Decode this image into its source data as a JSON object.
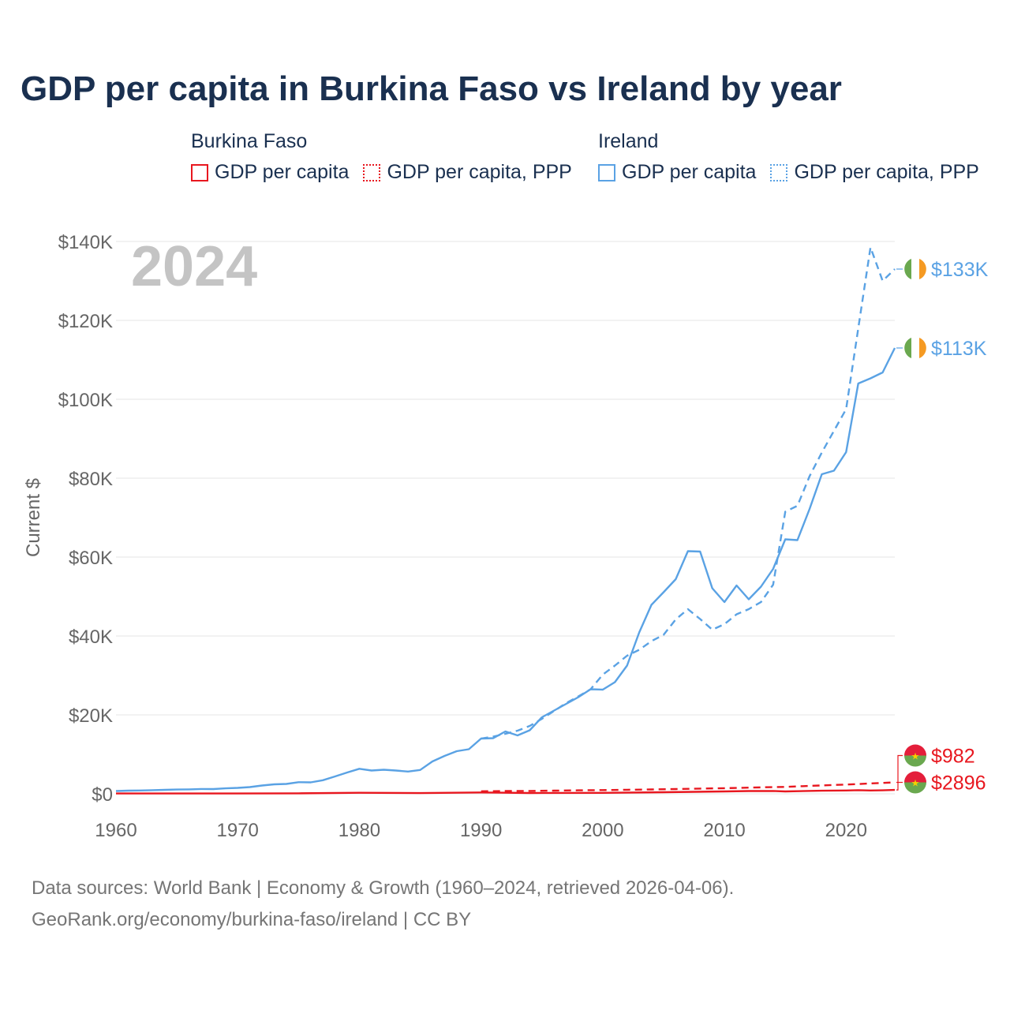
{
  "title": "GDP per capita in Burkina Faso vs Ireland by year",
  "legend": {
    "groups": [
      {
        "country": "Burkina Faso",
        "color": "#e8171f",
        "items": [
          {
            "label": "GDP per capita",
            "style": "solid"
          },
          {
            "label": "GDP per capita, PPP",
            "style": "dotted"
          }
        ]
      },
      {
        "country": "Ireland",
        "color": "#5aa2e4",
        "items": [
          {
            "label": "GDP per capita",
            "style": "solid"
          },
          {
            "label": "GDP per capita, PPP",
            "style": "dotted"
          }
        ]
      }
    ]
  },
  "year_watermark": "2024",
  "footer": {
    "line1": "Data sources: World Bank | Economy & Growth (1960–2024, retrieved 2026-04-06).",
    "line2": "GeoRank.org/economy/burkina-faso/ireland | CC BY"
  },
  "chart_data": {
    "type": "line",
    "ylabel": "Current $",
    "xlabel": "",
    "xlim": [
      1960,
      2024
    ],
    "ylim": [
      0,
      140000
    ],
    "x_ticks": [
      1960,
      1970,
      1980,
      1990,
      2000,
      2010,
      2020
    ],
    "y_ticks": [
      {
        "value": 0,
        "label": "$0"
      },
      {
        "value": 20000,
        "label": "$20K"
      },
      {
        "value": 40000,
        "label": "$40K"
      },
      {
        "value": 60000,
        "label": "$60K"
      },
      {
        "value": 80000,
        "label": "$80K"
      },
      {
        "value": 100000,
        "label": "$100K"
      },
      {
        "value": 120000,
        "label": "$120K"
      },
      {
        "value": 140000,
        "label": "$140K"
      }
    ],
    "series": [
      {
        "name": "Ireland GDP per capita, PPP",
        "country": "Ireland",
        "color": "#5aa2e4",
        "dash": "dashed",
        "end_label": "$133K",
        "points": [
          [
            1990,
            14000
          ],
          [
            1991,
            14500
          ],
          [
            1992,
            15200
          ],
          [
            1993,
            16000
          ],
          [
            1994,
            17200
          ],
          [
            1995,
            19000
          ],
          [
            1996,
            21000
          ],
          [
            1997,
            23000
          ],
          [
            1998,
            24700
          ],
          [
            1999,
            26500
          ],
          [
            2000,
            30200
          ],
          [
            2001,
            32500
          ],
          [
            2002,
            35000
          ],
          [
            2003,
            36500
          ],
          [
            2004,
            38700
          ],
          [
            2005,
            40300
          ],
          [
            2006,
            44200
          ],
          [
            2007,
            46800
          ],
          [
            2008,
            44300
          ],
          [
            2009,
            41600
          ],
          [
            2010,
            43000
          ],
          [
            2011,
            45500
          ],
          [
            2012,
            46800
          ],
          [
            2013,
            48600
          ],
          [
            2014,
            53000
          ],
          [
            2015,
            71500
          ],
          [
            2016,
            73000
          ],
          [
            2017,
            80500
          ],
          [
            2018,
            86500
          ],
          [
            2019,
            92000
          ],
          [
            2020,
            97500
          ],
          [
            2021,
            118000
          ],
          [
            2022,
            138500
          ],
          [
            2023,
            130000
          ],
          [
            2024,
            133000
          ]
        ]
      },
      {
        "name": "Ireland GDP per capita",
        "country": "Ireland",
        "color": "#5aa2e4",
        "dash": "solid",
        "end_label": "$113K",
        "points": [
          [
            1960,
            700
          ],
          [
            1961,
            790
          ],
          [
            1962,
            850
          ],
          [
            1963,
            920
          ],
          [
            1964,
            1010
          ],
          [
            1965,
            1080
          ],
          [
            1966,
            1130
          ],
          [
            1967,
            1220
          ],
          [
            1968,
            1190
          ],
          [
            1969,
            1380
          ],
          [
            1970,
            1500
          ],
          [
            1971,
            1700
          ],
          [
            1972,
            2100
          ],
          [
            1973,
            2400
          ],
          [
            1974,
            2500
          ],
          [
            1975,
            2950
          ],
          [
            1976,
            2900
          ],
          [
            1977,
            3450
          ],
          [
            1978,
            4400
          ],
          [
            1979,
            5400
          ],
          [
            1980,
            6350
          ],
          [
            1981,
            5900
          ],
          [
            1982,
            6100
          ],
          [
            1983,
            5900
          ],
          [
            1984,
            5650
          ],
          [
            1985,
            6050
          ],
          [
            1986,
            8200
          ],
          [
            1987,
            9600
          ],
          [
            1988,
            10800
          ],
          [
            1989,
            11300
          ],
          [
            1990,
            14000
          ],
          [
            1991,
            14100
          ],
          [
            1992,
            15800
          ],
          [
            1993,
            14800
          ],
          [
            1994,
            16100
          ],
          [
            1995,
            19400
          ],
          [
            1996,
            21100
          ],
          [
            1997,
            22800
          ],
          [
            1998,
            24500
          ],
          [
            1999,
            26500
          ],
          [
            2000,
            26400
          ],
          [
            2001,
            28300
          ],
          [
            2002,
            32500
          ],
          [
            2003,
            40900
          ],
          [
            2004,
            47900
          ],
          [
            2005,
            51100
          ],
          [
            2006,
            54400
          ],
          [
            2007,
            61500
          ],
          [
            2008,
            61400
          ],
          [
            2009,
            52100
          ],
          [
            2010,
            48600
          ],
          [
            2011,
            52800
          ],
          [
            2012,
            49300
          ],
          [
            2013,
            52500
          ],
          [
            2014,
            57000
          ],
          [
            2015,
            64500
          ],
          [
            2016,
            64300
          ],
          [
            2017,
            72200
          ],
          [
            2018,
            81000
          ],
          [
            2019,
            81900
          ],
          [
            2020,
            86600
          ],
          [
            2021,
            104000
          ],
          [
            2022,
            105300
          ],
          [
            2023,
            106800
          ],
          [
            2024,
            113000
          ]
        ]
      },
      {
        "name": "Burkina Faso GDP per capita, PPP",
        "country": "Burkina Faso",
        "color": "#e8171f",
        "dash": "dashed",
        "end_label": "$2896",
        "points": [
          [
            1990,
            650
          ],
          [
            1992,
            700
          ],
          [
            1994,
            720
          ],
          [
            1996,
            800
          ],
          [
            1998,
            880
          ],
          [
            2000,
            950
          ],
          [
            2002,
            1020
          ],
          [
            2004,
            1100
          ],
          [
            2006,
            1200
          ],
          [
            2008,
            1320
          ],
          [
            2010,
            1420
          ],
          [
            2012,
            1560
          ],
          [
            2014,
            1700
          ],
          [
            2015,
            1750
          ],
          [
            2016,
            1880
          ],
          [
            2017,
            2000
          ],
          [
            2018,
            2130
          ],
          [
            2019,
            2250
          ],
          [
            2020,
            2350
          ],
          [
            2021,
            2480
          ],
          [
            2022,
            2620
          ],
          [
            2023,
            2760
          ],
          [
            2024,
            2896
          ]
        ]
      },
      {
        "name": "Burkina Faso GDP per capita",
        "country": "Burkina Faso",
        "color": "#e8171f",
        "dash": "solid",
        "end_label": "$982",
        "points": [
          [
            1960,
            70
          ],
          [
            1965,
            80
          ],
          [
            1970,
            85
          ],
          [
            1975,
            130
          ],
          [
            1980,
            260
          ],
          [
            1985,
            180
          ],
          [
            1990,
            350
          ],
          [
            1994,
            190
          ],
          [
            1995,
            230
          ],
          [
            2000,
            240
          ],
          [
            2005,
            390
          ],
          [
            2010,
            600
          ],
          [
            2012,
            700
          ],
          [
            2014,
            720
          ],
          [
            2015,
            600
          ],
          [
            2018,
            780
          ],
          [
            2020,
            850
          ],
          [
            2021,
            920
          ],
          [
            2022,
            840
          ],
          [
            2023,
            880
          ],
          [
            2024,
            982
          ]
        ]
      }
    ],
    "end_labels": [
      {
        "country": "Ireland",
        "text": "$133K",
        "value": 133000,
        "color": "#5aa2e4",
        "flag": "ireland-flag-icon"
      },
      {
        "country": "Ireland",
        "text": "$113K",
        "value": 113000,
        "color": "#5aa2e4",
        "flag": "ireland-flag-icon"
      },
      {
        "country": "Burkina Faso",
        "text": "$2896",
        "value": 2896,
        "color": "#e8171f",
        "flag": "burkina-faso-flag-icon"
      },
      {
        "country": "Burkina Faso",
        "text": "$982",
        "value": 982,
        "color": "#e8171f",
        "flag": "burkina-faso-flag-icon"
      }
    ]
  }
}
